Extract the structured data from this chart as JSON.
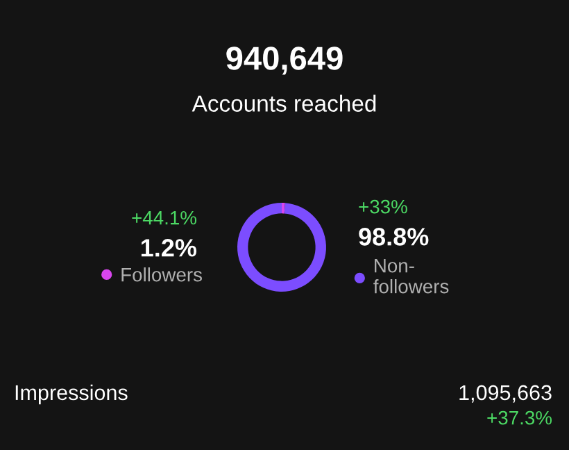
{
  "chart_data": {
    "type": "donut",
    "title": "940,649",
    "subtitle": "Accounts reached",
    "categories": [
      "Followers",
      "Non-\nfollowers"
    ],
    "values": [
      1.2,
      98.8
    ],
    "colors": [
      "#d946ef",
      "#7c4dff"
    ],
    "value_labels": [
      "1.2%",
      "98.8%"
    ],
    "legend": "bottom",
    "annotations": [
      "+44.1%",
      "+33%",
      "Impressions",
      "1,095,663",
      "+37.3%"
    ]
  }
}
